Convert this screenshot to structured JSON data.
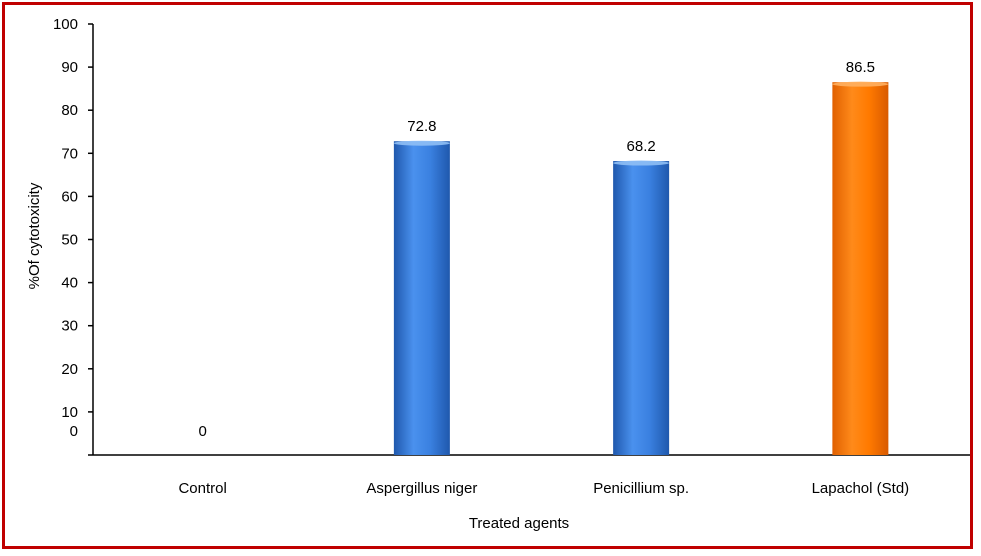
{
  "chart_data": {
    "type": "bar",
    "categories": [
      "Control",
      "Aspergillus niger",
      "Penicillium sp.",
      "Lapachol (Std)"
    ],
    "values": [
      0,
      72.8,
      68.2,
      86.5
    ],
    "data_labels": [
      "0",
      "72.8",
      "68.2",
      "86.5"
    ],
    "bar_colors": [
      "#2e74d6",
      "#2e74d6",
      "#2e74d6",
      "#ff7a00"
    ],
    "title": "",
    "xlabel": "Treated agents",
    "ylabel": "%Of cytotoxicity",
    "ylim": [
      0,
      100
    ],
    "yticks": [
      0,
      10,
      20,
      30,
      40,
      50,
      60,
      70,
      80,
      90,
      100
    ],
    "grid": false,
    "legend": "none"
  },
  "colors": {
    "frame_border": "#c00000",
    "axis": "#000000"
  }
}
